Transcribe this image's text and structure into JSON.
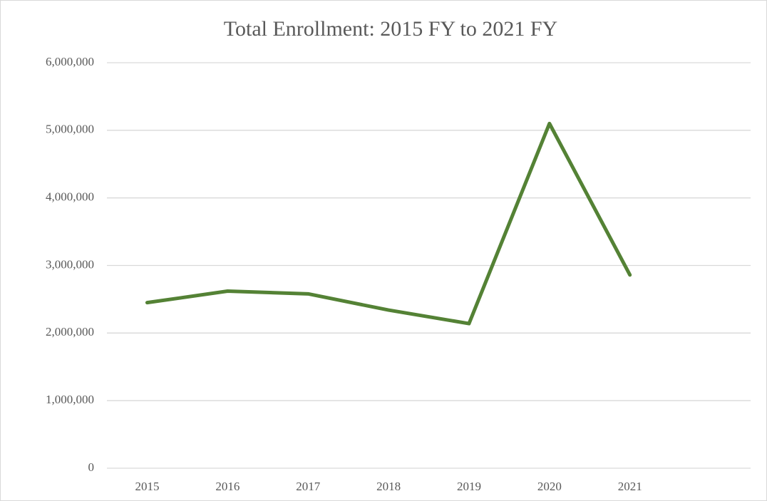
{
  "chart_data": {
    "type": "line",
    "title": "Total Enrollment: 2015 FY to 2021 FY",
    "categories": [
      "2015",
      "2016",
      "2017",
      "2018",
      "2019",
      "2020",
      "2021",
      null
    ],
    "values": [
      2450000,
      2620000,
      2580000,
      2340000,
      2140000,
      5100000,
      2860000,
      null
    ],
    "color": "#548235",
    "ylim": [
      0,
      6000000
    ],
    "yticks": [
      0,
      {
        "value": 1000000,
        "label": "1,000,000"
      },
      {
        "value": 2000000,
        "label": "2,000,000"
      },
      {
        "value": 3000000,
        "label": "3,000,000"
      },
      {
        "value": 4000000,
        "label": "4,000,000"
      },
      {
        "value": 5000000,
        "label": "5,000,000"
      },
      {
        "value": 6000000,
        "label": "6,000,000"
      }
    ],
    "grid": true
  }
}
